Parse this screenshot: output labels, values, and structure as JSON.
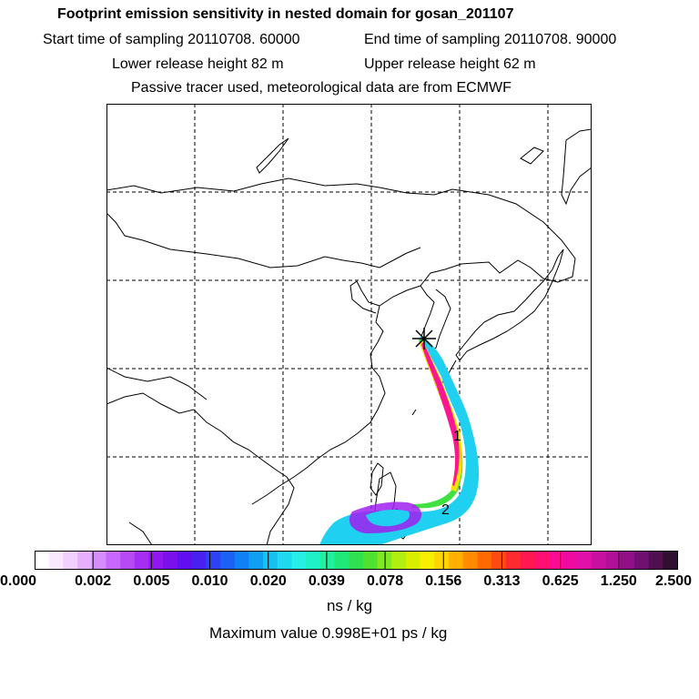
{
  "header": {
    "title": "Footprint emission sensitivity in nested domain for gosan_201107",
    "start_sampling": "Start time of sampling 20110708. 60000",
    "end_sampling": "End time of sampling 20110708. 90000",
    "lower_release": "Lower release height   82 m",
    "upper_release": "Upper release height   62 m",
    "tracer_note": "Passive tracer used, meteorological data are from ECMWF"
  },
  "map": {
    "plume_labels": [
      "1",
      "2"
    ],
    "colors": {
      "plume_outer": "#1fd0f0",
      "plume_inner_purple": "#a020f0",
      "plume_core": "#ff1493",
      "plume_yellow": "#ffe000",
      "plume_green": "#40e040"
    }
  },
  "legend": {
    "tick_labels": [
      "0.000",
      "0.002",
      "0.005",
      "0.010",
      "0.020",
      "0.039",
      "0.078",
      "0.156",
      "0.313",
      "0.625",
      "1.250",
      "2.500"
    ],
    "colors": [
      "#ffffff",
      "#f9e8ff",
      "#f1d0ff",
      "#e6b0ff",
      "#d58cff",
      "#c768ff",
      "#b84af5",
      "#a52ef0",
      "#9018ee",
      "#7a10ea",
      "#6010f0",
      "#4820f0",
      "#3040f5",
      "#1c60f5",
      "#1080f5",
      "#10a0f2",
      "#18c0f0",
      "#20d8f0",
      "#28eee8",
      "#20f0c8",
      "#20f0a0",
      "#20e878",
      "#30e050",
      "#50e030",
      "#80e820",
      "#b0f010",
      "#d8f000",
      "#f8f000",
      "#ffd400",
      "#ffb000",
      "#ff8c00",
      "#ff6a00",
      "#ff4a10",
      "#ff2a30",
      "#ff1850",
      "#ff1070",
      "#ff0a90",
      "#f00aa0",
      "#e010a8",
      "#c810a0",
      "#b01098",
      "#901088",
      "#701070",
      "#501050",
      "#301030"
    ],
    "units": "ns / kg",
    "max_value_text": "Maximum value  0.998E+01 ps / kg"
  }
}
